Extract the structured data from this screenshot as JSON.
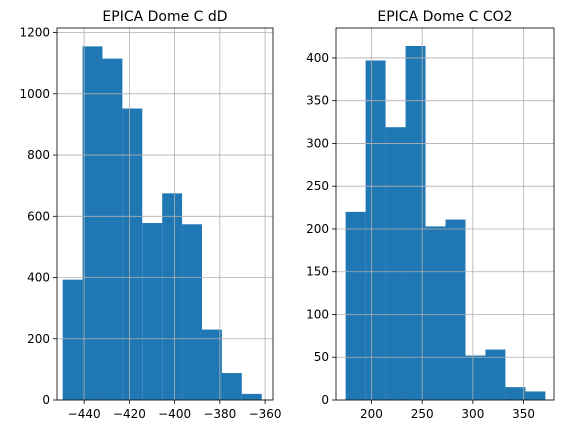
{
  "chart_data": [
    {
      "type": "bar",
      "title": "EPICA Dome C dD",
      "xlabel": "",
      "ylabel": "",
      "xlim": [
        -452,
        -356.5
      ],
      "ylim": [
        0,
        1215
      ],
      "xticks": [
        -440,
        -420,
        -400,
        -380,
        -360
      ],
      "yticks": [
        0,
        200,
        400,
        600,
        800,
        1000,
        1200
      ],
      "grid": true,
      "color": "#1f77b4",
      "bins": [
        {
          "x0": -449.5,
          "x1": -440.7,
          "count": 393
        },
        {
          "x0": -440.7,
          "x1": -431.9,
          "count": 1155
        },
        {
          "x0": -431.9,
          "x1": -423.1,
          "count": 1115
        },
        {
          "x0": -423.1,
          "x1": -414.3,
          "count": 952
        },
        {
          "x0": -414.3,
          "x1": -405.5,
          "count": 578
        },
        {
          "x0": -405.5,
          "x1": -396.7,
          "count": 675
        },
        {
          "x0": -396.7,
          "x1": -387.9,
          "count": 574
        },
        {
          "x0": -387.9,
          "x1": -379.1,
          "count": 230
        },
        {
          "x0": -379.1,
          "x1": -370.3,
          "count": 88
        },
        {
          "x0": -370.3,
          "x1": -361.5,
          "count": 20
        }
      ]
    },
    {
      "type": "bar",
      "title": "EPICA Dome C CO2",
      "xlabel": "",
      "ylabel": "",
      "xlim": [
        165,
        380
      ],
      "ylim": [
        0,
        435
      ],
      "xticks": [
        200,
        250,
        300,
        350
      ],
      "yticks": [
        0,
        50,
        100,
        150,
        200,
        250,
        300,
        350,
        400
      ],
      "grid": true,
      "color": "#1f77b4",
      "bins": [
        {
          "x0": 174.5,
          "x1": 194.2,
          "count": 220
        },
        {
          "x0": 194.2,
          "x1": 213.9,
          "count": 397
        },
        {
          "x0": 213.9,
          "x1": 233.6,
          "count": 319
        },
        {
          "x0": 233.6,
          "x1": 253.3,
          "count": 414
        },
        {
          "x0": 253.3,
          "x1": 273.0,
          "count": 203
        },
        {
          "x0": 273.0,
          "x1": 292.7,
          "count": 211
        },
        {
          "x0": 292.7,
          "x1": 312.4,
          "count": 52
        },
        {
          "x0": 312.4,
          "x1": 332.1,
          "count": 59
        },
        {
          "x0": 332.1,
          "x1": 351.8,
          "count": 15
        },
        {
          "x0": 351.8,
          "x1": 371.5,
          "count": 10
        }
      ]
    }
  ]
}
